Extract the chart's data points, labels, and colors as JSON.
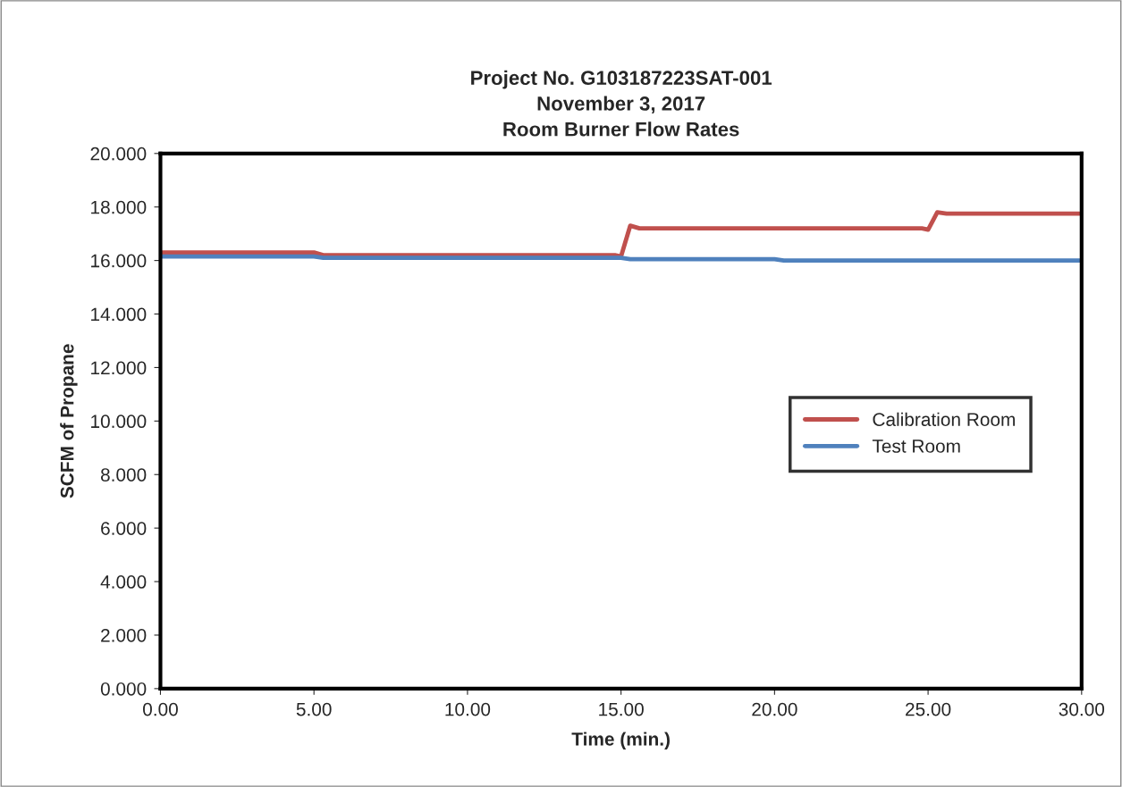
{
  "chart_data": {
    "type": "line",
    "title": "Project No. G103187223SAT-001\nNovember 3, 2017\nRoom Burner Flow Rates",
    "xlabel": "Time (min.)",
    "ylabel": "SCFM of Propane",
    "series": [
      {
        "name": "Calibration Room",
        "color": "#c0504d",
        "x": [
          0,
          5.0,
          5.3,
          10,
          14.8,
          15.0,
          15.3,
          15.6,
          20,
          24.8,
          25.0,
          25.3,
          25.6,
          30
        ],
        "values": [
          16.3,
          16.3,
          16.2,
          16.2,
          16.2,
          16.15,
          17.3,
          17.2,
          17.2,
          17.2,
          17.15,
          17.8,
          17.75,
          17.75
        ]
      },
      {
        "name": "Test Room",
        "color": "#4f81bd",
        "x": [
          0,
          5.0,
          5.3,
          15.0,
          15.3,
          20.0,
          20.3,
          30
        ],
        "values": [
          16.15,
          16.15,
          16.1,
          16.1,
          16.05,
          16.05,
          16.0,
          16.0
        ]
      }
    ],
    "xlim": [
      0,
      30
    ],
    "ylim": [
      0,
      20
    ],
    "xticks": [
      {
        "value": 0,
        "label": "0.00"
      },
      {
        "value": 5,
        "label": "5.00"
      },
      {
        "value": 10,
        "label": "10.00"
      },
      {
        "value": 15,
        "label": "15.00"
      },
      {
        "value": 20,
        "label": "20.00"
      },
      {
        "value": 25,
        "label": "25.00"
      },
      {
        "value": 30,
        "label": "30.00"
      }
    ],
    "yticks": [
      {
        "value": 0,
        "label": "0.000"
      },
      {
        "value": 2,
        "label": "2.000"
      },
      {
        "value": 4,
        "label": "4.000"
      },
      {
        "value": 6,
        "label": "6.000"
      },
      {
        "value": 8,
        "label": "8.000"
      },
      {
        "value": 10,
        "label": "10.000"
      },
      {
        "value": 12,
        "label": "12.000"
      },
      {
        "value": 14,
        "label": "14.000"
      },
      {
        "value": 16,
        "label": "16.000"
      },
      {
        "value": 18,
        "label": "18.000"
      },
      {
        "value": 20,
        "label": "20.000"
      }
    ],
    "grid": false,
    "legend": "right",
    "marker": "none",
    "line_style": "solid"
  }
}
